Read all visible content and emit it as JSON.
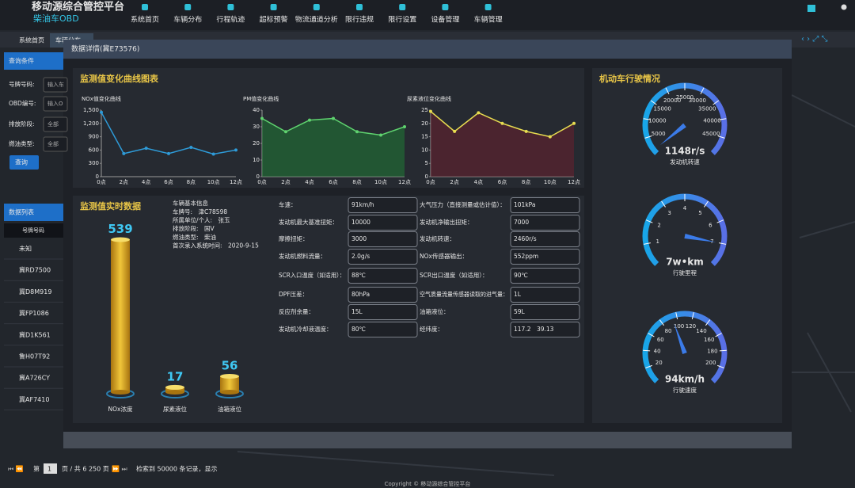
{
  "header": {
    "title": "移动源综合管控平台",
    "subtitle": "柴油车OBD",
    "nav": [
      "系统首页",
      "车辆分布",
      "行程轨迹",
      "超标预警",
      "物流通道分析",
      "限行违规",
      "限行设置",
      "设备管理",
      "车辆管理"
    ]
  },
  "tabs": [
    "系统首页",
    "车辆分布"
  ],
  "query": {
    "title": "查询条件",
    "fields": [
      {
        "label": "号牌号码:",
        "text": "输入车"
      },
      {
        "label": "OBD编号:",
        "text": "输入O"
      },
      {
        "label": "排放阶段:",
        "text": "全部"
      },
      {
        "label": "燃油类型:",
        "text": "全部"
      }
    ],
    "button": "查询"
  },
  "list": {
    "title": "数据列表",
    "column": "号牌号码",
    "rows": [
      "未知",
      "冀RD7500",
      "冀D8M919",
      "冀FP1086",
      "冀D1K561",
      "鲁H07T92",
      "冀A726CY",
      "冀AF7410"
    ]
  },
  "pagination": {
    "prefix": "第",
    "page": 1,
    "middle": "页 / 共 6 250 页",
    "summary": "检索到 50000 条记录，显示"
  },
  "footer": "Copyright © 移动源综合管控平台",
  "modal": {
    "title": "数据详情(冀E73576)",
    "curve_section": "监测值变化曲线图表",
    "realtime_section": "监测值实时数据",
    "driving_section": "机动车行驶情况",
    "info": {
      "title": "车辆基本信息",
      "rows": [
        "车牌号:　津C78598",
        "所属单位/个人:　张玉",
        "排放阶段:　国V",
        "燃油类型:　柴油",
        "首次录入系统时间:　2020-9-15"
      ]
    },
    "fields": [
      [
        "车速：",
        "91km/h"
      ],
      [
        "大气压力（直接测量或估计值）：",
        "101kPa"
      ],
      [
        "发动机最大基准扭矩：",
        "10000"
      ],
      [
        "发动机净输出扭矩：",
        "7000"
      ],
      [
        "摩擦扭矩：",
        "3000"
      ],
      [
        "发动机转速：",
        "2460r/s"
      ],
      [
        "发动机燃料流量：",
        "2.0g/s"
      ],
      [
        "NOx传感器输出：",
        "552ppm"
      ],
      [
        "SCR入口温度（如适用）：",
        "88℃"
      ],
      [
        "SCR出口温度（如适用）：",
        "90℃"
      ],
      [
        "DPF压差：",
        "80hPa"
      ],
      [
        "空气质量流量传感器读取的进气量：",
        "1L"
      ],
      [
        "反应剂余量：",
        "15L"
      ],
      [
        "油箱液位：",
        "59L"
      ],
      [
        "发动机冷却液温度：",
        "80℃"
      ],
      [
        "经纬度：",
        "117.2　39.13"
      ]
    ]
  },
  "chart_data": [
    {
      "type": "line",
      "title": "NOx值变化曲线",
      "categories": [
        "0点",
        "2点",
        "4点",
        "6点",
        "8点",
        "10点",
        "12点"
      ],
      "series": [
        {
          "color": "#2e9bd8",
          "values": [
            1450,
            520,
            640,
            520,
            660,
            510,
            600
          ]
        }
      ],
      "ylim": [
        0,
        1500
      ],
      "yticks": [
        0,
        300,
        600,
        900,
        {
          "value": 1200,
          "label": "1,200"
        },
        {
          "value": 1500,
          "label": "1,500"
        }
      ],
      "area": false
    },
    {
      "type": "line",
      "title": "PM值变化曲线",
      "categories": [
        "0点",
        "2点",
        "4点",
        "6点",
        "8点",
        "10点",
        "12点"
      ],
      "series": [
        {
          "color": "#5fd36f",
          "values": [
            35,
            27,
            34,
            35,
            27,
            25,
            30
          ]
        }
      ],
      "ylim": [
        0,
        40
      ],
      "yticks": [
        0,
        10,
        20,
        30,
        40
      ],
      "area": true,
      "area_color": "#1f7a35"
    },
    {
      "type": "line",
      "title": "尿素液位变化曲线",
      "categories": [
        "0点",
        "2点",
        "4点",
        "6点",
        "8点",
        "10点",
        "12点"
      ],
      "series": [
        {
          "color": "#e8dd50",
          "values": [
            24.5,
            17,
            24,
            20,
            17,
            15,
            20
          ]
        }
      ],
      "ylim": [
        0,
        25
      ],
      "yticks": [
        0,
        5,
        10,
        15,
        20,
        25
      ],
      "area": true,
      "area_color": "#6a1f2e"
    },
    {
      "type": "bar",
      "categories": [
        "NOx浓度",
        "尿素液位",
        "油箱液位"
      ],
      "values": [
        539,
        17,
        56
      ],
      "ylim": [
        0,
        560
      ],
      "color": "#d9a520"
    },
    {
      "type": "gauge",
      "title": "发动机转速",
      "value": 1148,
      "value_label": "1148r/s",
      "ylim": [
        0,
        50000
      ],
      "yticks": [
        5000,
        10000,
        15000,
        20000,
        25000,
        30000,
        35000,
        40000,
        45000
      ]
    },
    {
      "type": "gauge",
      "title": "行驶里程",
      "value": 7,
      "value_label": "7w•km",
      "ylim": [
        0,
        8
      ],
      "yticks": [
        1,
        2,
        3,
        4,
        5,
        6,
        7
      ]
    },
    {
      "type": "gauge",
      "title": "行驶速度",
      "value": 94,
      "value_label": "94km/h",
      "ylim": [
        0,
        220
      ],
      "yticks": [
        20,
        40,
        60,
        80,
        100,
        120,
        140,
        160,
        180,
        200
      ]
    }
  ]
}
